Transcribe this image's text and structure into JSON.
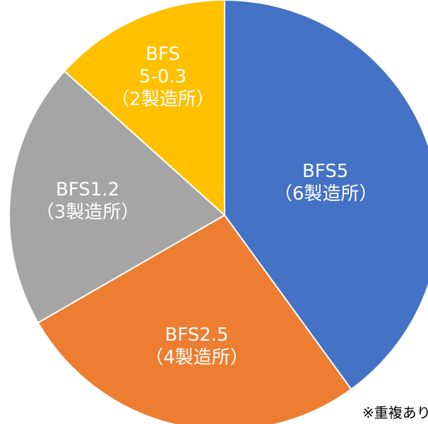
{
  "chart_data": {
    "type": "pie",
    "categories": [
      "BFS5",
      "BFS2.5",
      "BFS1.2",
      "BFS\n5-0.3"
    ],
    "values": [
      6,
      4,
      3,
      2
    ],
    "value_labels": [
      "（6製造所）",
      "（4製造所）",
      "（3製造所）",
      "（2製造所）"
    ],
    "colors": [
      "#4472c4",
      "#ed7d31",
      "#a5a5a5",
      "#ffc000"
    ],
    "annotation": "※重複あり"
  }
}
